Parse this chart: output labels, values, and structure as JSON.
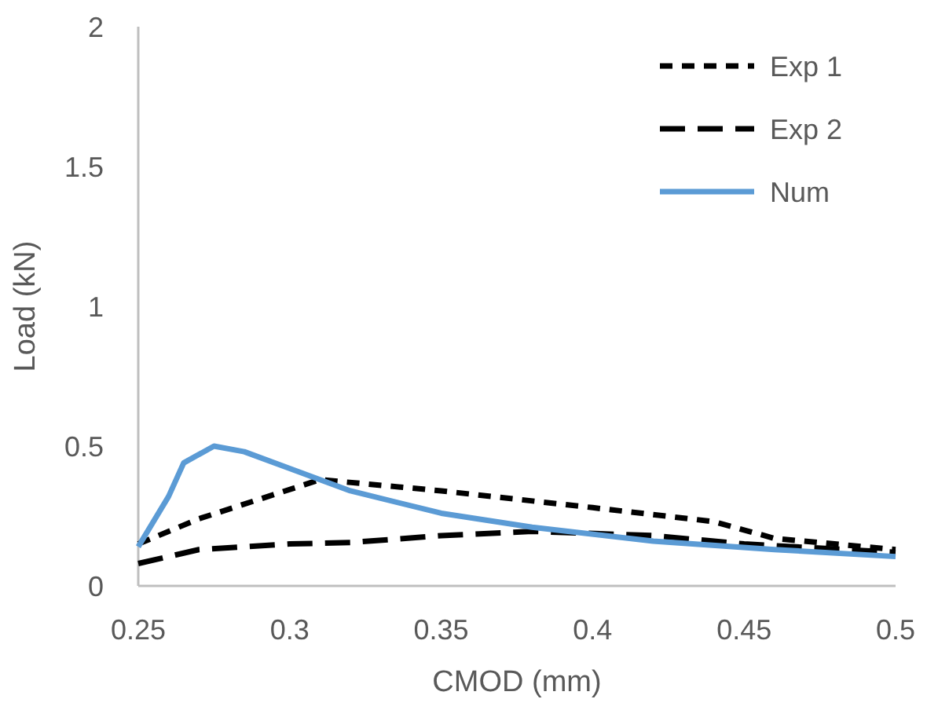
{
  "chart_data": {
    "type": "line",
    "xlabel": "CMOD (mm)",
    "ylabel": "Load (kN)",
    "xlim": [
      0.25,
      0.5
    ],
    "xticks": [
      0.25,
      0.3,
      0.35,
      0.4,
      0.45,
      0.5
    ],
    "ylim": [
      0,
      2
    ],
    "yticks": [
      0,
      0.5,
      1,
      1.5,
      2
    ],
    "grid": false,
    "legend": "top right",
    "series": [
      {
        "name": "Exp 1",
        "color": "#000000",
        "line_style": "dotted",
        "x": [
          0.25,
          0.27,
          0.29,
          0.31,
          0.35,
          0.4,
          0.44,
          0.46,
          0.5
        ],
        "values": [
          0.15,
          0.24,
          0.31,
          0.38,
          0.34,
          0.28,
          0.23,
          0.17,
          0.13
        ]
      },
      {
        "name": "Exp 2",
        "color": "#000000",
        "line_style": "dashed",
        "x": [
          0.25,
          0.27,
          0.3,
          0.32,
          0.35,
          0.38,
          0.42,
          0.45,
          0.5
        ],
        "values": [
          0.08,
          0.13,
          0.15,
          0.155,
          0.18,
          0.195,
          0.18,
          0.15,
          0.12
        ]
      },
      {
        "name": "Num",
        "color": "#5b9bd5",
        "line_style": "solid",
        "x": [
          0.25,
          0.26,
          0.265,
          0.275,
          0.285,
          0.3,
          0.32,
          0.35,
          0.38,
          0.42,
          0.46,
          0.5
        ],
        "values": [
          0.14,
          0.32,
          0.44,
          0.5,
          0.48,
          0.42,
          0.34,
          0.26,
          0.21,
          0.16,
          0.13,
          0.105
        ]
      }
    ]
  }
}
